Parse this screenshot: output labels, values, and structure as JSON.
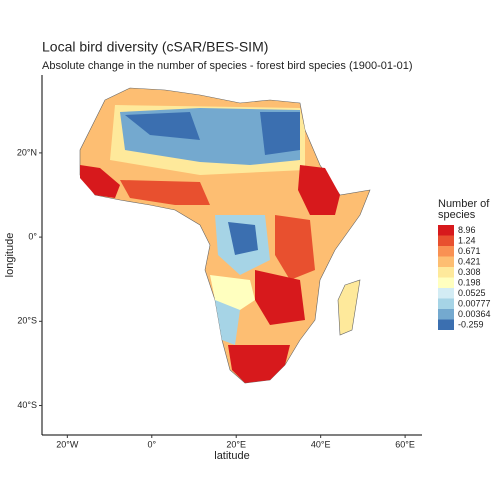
{
  "chart_data": {
    "type": "map",
    "title": "Local bird diversity (cSAR/BES-SIM)",
    "subtitle": "Absolute change in the number of species - forest bird species (1900-01-01)",
    "xlabel": "latitude",
    "ylabel": "longitude",
    "xlim": [
      -26,
      64
    ],
    "ylim": [
      -47,
      38.5
    ],
    "xticks": [
      {
        "value": -20,
        "label": "20°W"
      },
      {
        "value": 0,
        "label": "0°"
      },
      {
        "value": 20,
        "label": "20°E"
      },
      {
        "value": 40,
        "label": "40°E"
      },
      {
        "value": 60,
        "label": "60°E"
      }
    ],
    "yticks": [
      {
        "value": 20,
        "label": "20°N"
      },
      {
        "value": 0,
        "label": "0°"
      },
      {
        "value": -20,
        "label": "20°S"
      },
      {
        "value": -40,
        "label": "40°S"
      }
    ],
    "legend": {
      "title": [
        "Number of",
        "species"
      ],
      "values": [
        8.96,
        1.24,
        0.671,
        0.421,
        0.308,
        0.198,
        0.0525,
        0.00777,
        0.00364,
        -0.259
      ],
      "colors": [
        "#d7191c",
        "#e8502f",
        "#f99153",
        "#fdbe72",
        "#fee99b",
        "#ffffbf",
        "#d3ecf4",
        "#a6d4e6",
        "#74a9cf",
        "#3b6fb0"
      ]
    }
  }
}
